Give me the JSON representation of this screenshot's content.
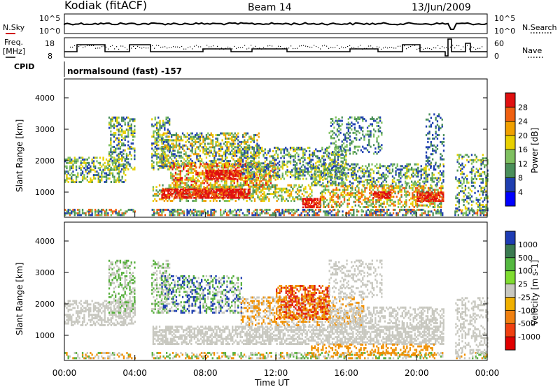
{
  "header": {
    "station": "Kodiak (fitACF)",
    "beam": "Beam 14",
    "date": "13/Jun/2009"
  },
  "top_panels": {
    "nsky_label": "N.Sky",
    "nsky_tick_hi": "10^5",
    "nsky_tick_lo": "10^0",
    "nsearch_label": "N.Search",
    "nsearch_tick_hi": "10^5",
    "nsearch_tick_lo": "10^0",
    "freq_label": "Freq.",
    "freq_unit": "[MHz]",
    "freq_tick_hi": "18",
    "freq_tick_lo": "8",
    "nave_label": "Nave",
    "nave_tick_hi": "60",
    "nave_tick_lo": "0",
    "cpid_label": "CPID",
    "cpid_value": "normalsound (fast) -157"
  },
  "chart_data": [
    {
      "type": "heatmap",
      "name": "power",
      "ylabel": "Slant Range [km]",
      "ylim": [
        200,
        4600
      ],
      "yticks": [
        "1000",
        "2000",
        "3000",
        "4000"
      ],
      "ytick_values": [
        1000,
        2000,
        3000,
        4000
      ],
      "xlim": [
        0,
        24
      ],
      "colorbar_label": "Power [dB]",
      "colorbar_ticks": [
        "4",
        "8",
        "12",
        "16",
        "20",
        "24",
        "28"
      ],
      "colorbar_colors": [
        "#0000ff",
        "#1f3fb0",
        "#4a8f5a",
        "#7fc060",
        "#e8d000",
        "#f0a000",
        "#f06010",
        "#e01010"
      ],
      "dominant_features": [
        {
          "x_start": 5.5,
          "x_end": 10.5,
          "y_start": 800,
          "y_end": 1100,
          "level": "high"
        },
        {
          "x_start": 8.0,
          "x_end": 10.0,
          "y_start": 1400,
          "y_end": 1700,
          "level": "high"
        },
        {
          "x_start": 13.5,
          "x_end": 14.5,
          "y_start": 500,
          "y_end": 800,
          "level": "high"
        },
        {
          "x_start": 17.5,
          "x_end": 18.5,
          "y_start": 800,
          "y_end": 1000,
          "level": "high"
        },
        {
          "x_start": 20.0,
          "x_end": 21.5,
          "y_start": 700,
          "y_end": 1000,
          "level": "high"
        }
      ]
    },
    {
      "type": "heatmap",
      "name": "velocity",
      "ylabel": "Slant Range [km]",
      "xlabel": "Time UT",
      "ylim": [
        200,
        4600
      ],
      "yticks": [
        "1000",
        "2000",
        "3000",
        "4000"
      ],
      "ytick_values": [
        1000,
        2000,
        3000,
        4000
      ],
      "xticks": [
        "00:00",
        "04:00",
        "08:00",
        "12:00",
        "16:00",
        "20:00",
        "00:00"
      ],
      "xtick_values": [
        0,
        4,
        8,
        12,
        16,
        20,
        24
      ],
      "xlim": [
        0,
        24
      ],
      "colorbar_label": "Velocity [m s-1]",
      "colorbar_ticks": [
        "1000",
        "500",
        "100",
        "25",
        "-25",
        "-100",
        "-500",
        "-1000"
      ],
      "colorbar_colors": [
        "#1e3cb4",
        "#3a7a50",
        "#54b840",
        "#7fdc30",
        "#c8c8c0",
        "#f0b000",
        "#f08010",
        "#f04010",
        "#e00000"
      ]
    }
  ],
  "colors": {
    "gray": "#c8c8c0",
    "blue": "#1f3fb0",
    "green": "#5ab040",
    "orange": "#f09000",
    "red": "#e02010"
  }
}
